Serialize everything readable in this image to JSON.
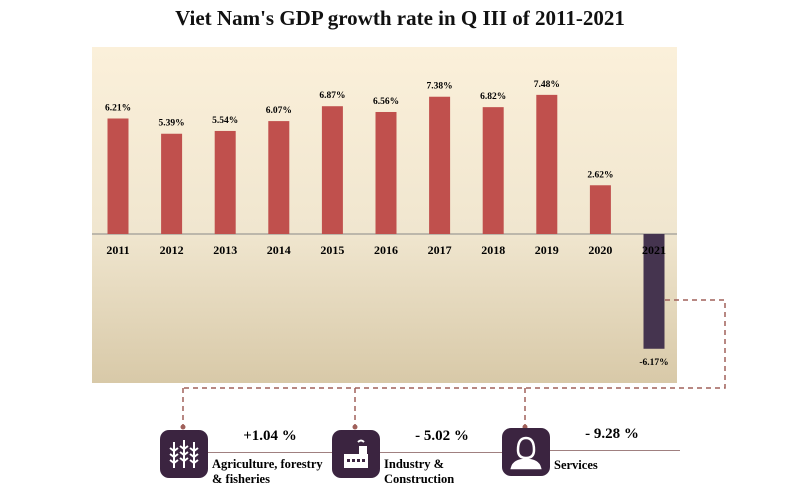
{
  "chart_data": {
    "type": "bar",
    "title": "Viet Nam's GDP growth rate in Q III of 2011-2021",
    "categories": [
      "2011",
      "2012",
      "2013",
      "2014",
      "2015",
      "2016",
      "2017",
      "2018",
      "2019",
      "2020",
      "2021"
    ],
    "values": [
      6.21,
      5.39,
      5.54,
      6.07,
      6.87,
      6.56,
      7.38,
      6.82,
      7.48,
      2.62,
      -6.17
    ],
    "data_labels": [
      "6.21%",
      "5.39%",
      "5.54%",
      "6.07%",
      "6.87%",
      "6.56%",
      "7.38%",
      "6.82%",
      "7.48%",
      "2.62%",
      "-6.17%"
    ],
    "xlabel": "",
    "ylabel": "",
    "colors": {
      "positive": "#c0504d",
      "negative": "#45344f"
    },
    "grid": false
  },
  "sectors": [
    {
      "value": "+1.04 %",
      "label": "Agriculture, forestry & fisheries",
      "icon": "wheat-icon"
    },
    {
      "value": "- 5.02 %",
      "label": "Industry & Construction",
      "icon": "factory-icon"
    },
    {
      "value": "- 9.28 %",
      "label": "Services",
      "icon": "service-person-icon"
    }
  ]
}
